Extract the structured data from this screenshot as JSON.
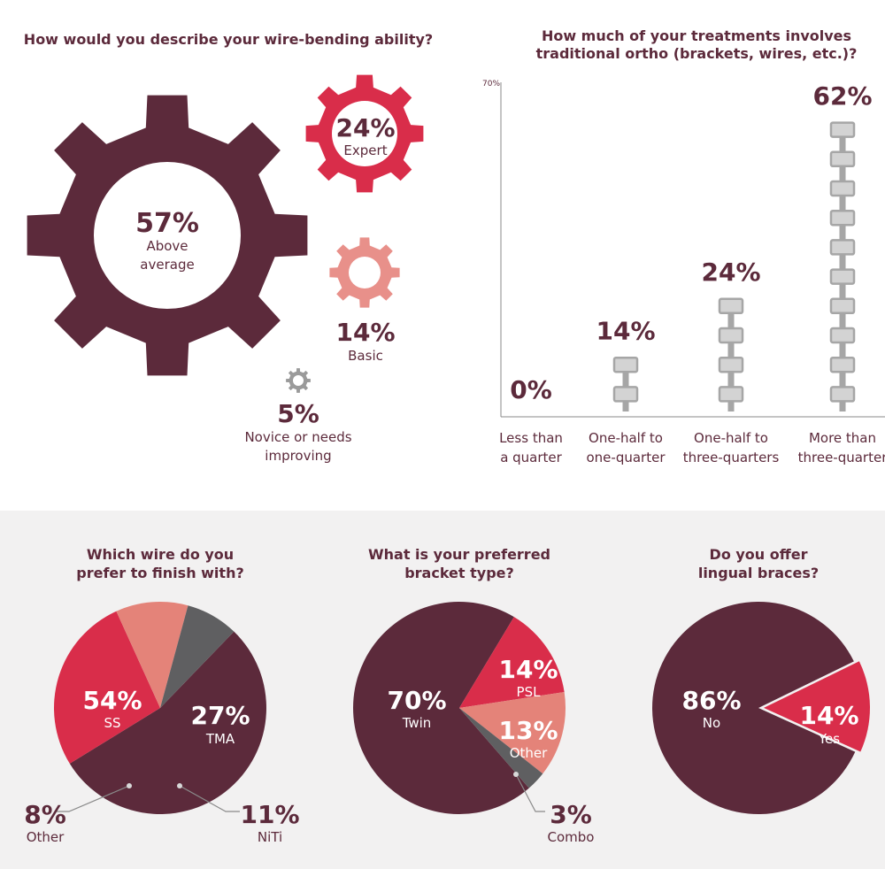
{
  "colors": {
    "maroon": "#5c2a3b",
    "red": "#d92d4a",
    "salmon": "#e48379",
    "pink": "#e8908a",
    "gray": "#9a9a9a",
    "dark_gray": "#5f5f61",
    "light_bg": "#f2f1f1",
    "bracket_fill": "#d3d3d3",
    "bracket_stroke": "#a6a6a6"
  },
  "gears": {
    "title": "How would you describe your wire-bending ability?",
    "items": [
      {
        "percent": "57%",
        "label_lines": [
          "Above",
          "average"
        ],
        "value": 57
      },
      {
        "percent": "24%",
        "label_lines": [
          "Expert"
        ],
        "value": 24
      },
      {
        "percent": "14%",
        "label_lines": [
          "Basic"
        ],
        "value": 14
      },
      {
        "percent": "5%",
        "label_lines": [
          "Novice or needs",
          "improving"
        ],
        "value": 5
      }
    ]
  },
  "chart_data": [
    {
      "type": "bar",
      "title_lines": [
        "How much of your treatments involves",
        "traditional ortho (brackets, wires, etc.)?"
      ],
      "y_max_label": "70%",
      "ylim": [
        0,
        70
      ],
      "categories": [
        [
          "Less than",
          "a quarter"
        ],
        [
          "One-half to",
          "one-quarter"
        ],
        [
          "One-half to",
          "three-quarters"
        ],
        [
          "More than",
          "three-quarter"
        ]
      ],
      "values": [
        0,
        14,
        24,
        62
      ],
      "value_labels": [
        "0%",
        "14%",
        "24%",
        "62%"
      ]
    },
    {
      "type": "pie",
      "title_lines": [
        "Which wire do you",
        "prefer to finish with?"
      ],
      "slices": [
        {
          "label": "SS",
          "percent": "54%",
          "value": 54
        },
        {
          "label": "TMA",
          "percent": "27%",
          "value": 27
        },
        {
          "label": "NiTi",
          "percent": "11%",
          "value": 11
        },
        {
          "label": "Other",
          "percent": "8%",
          "value": 8
        }
      ]
    },
    {
      "type": "pie",
      "title_lines": [
        "What is your preferred",
        "bracket type?"
      ],
      "slices": [
        {
          "label": "Twin",
          "percent": "70%",
          "value": 70
        },
        {
          "label": "PSL",
          "percent": "14%",
          "value": 14
        },
        {
          "label": "Other",
          "percent": "13%",
          "value": 13
        },
        {
          "label": "Combo",
          "percent": "3%",
          "value": 3
        }
      ]
    },
    {
      "type": "pie",
      "title_lines": [
        "Do you offer",
        "lingual braces?"
      ],
      "slices": [
        {
          "label": "No",
          "percent": "86%",
          "value": 86
        },
        {
          "label": "Yes",
          "percent": "14%",
          "value": 14
        }
      ]
    }
  ]
}
